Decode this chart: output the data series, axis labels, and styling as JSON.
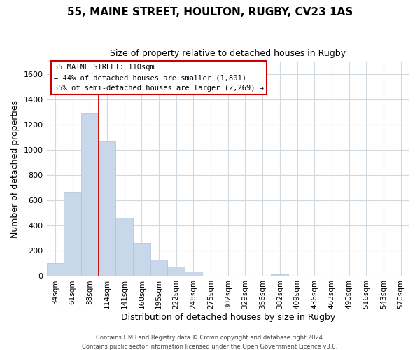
{
  "title": "55, MAINE STREET, HOULTON, RUGBY, CV23 1AS",
  "subtitle": "Size of property relative to detached houses in Rugby",
  "xlabel": "Distribution of detached houses by size in Rugby",
  "ylabel": "Number of detached properties",
  "bar_color": "#c8d8ea",
  "bar_edge_color": "#a8c4d8",
  "categories": [
    "34sqm",
    "61sqm",
    "88sqm",
    "114sqm",
    "141sqm",
    "168sqm",
    "195sqm",
    "222sqm",
    "248sqm",
    "275sqm",
    "302sqm",
    "329sqm",
    "356sqm",
    "382sqm",
    "409sqm",
    "436sqm",
    "463sqm",
    "490sqm",
    "516sqm",
    "543sqm",
    "570sqm"
  ],
  "values": [
    100,
    670,
    1290,
    1070,
    465,
    265,
    130,
    72,
    35,
    0,
    0,
    0,
    0,
    14,
    0,
    0,
    0,
    0,
    0,
    0,
    0
  ],
  "vline_color": "#cc0000",
  "vline_index": 2.5,
  "ylim": [
    0,
    1700
  ],
  "yticks": [
    0,
    200,
    400,
    600,
    800,
    1000,
    1200,
    1400,
    1600
  ],
  "annotation_title": "55 MAINE STREET: 110sqm",
  "annotation_line1": "← 44% of detached houses are smaller (1,801)",
  "annotation_line2": "55% of semi-detached houses are larger (2,269) →",
  "footer1": "Contains HM Land Registry data © Crown copyright and database right 2024.",
  "footer2": "Contains public sector information licensed under the Open Government Licence v3.0.",
  "background_color": "#ffffff",
  "grid_color": "#d0d8e0"
}
